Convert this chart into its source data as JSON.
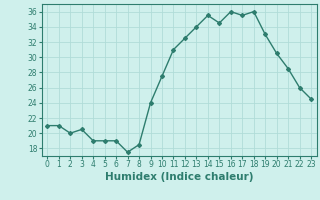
{
  "x": [
    0,
    1,
    2,
    3,
    4,
    5,
    6,
    7,
    8,
    9,
    10,
    11,
    12,
    13,
    14,
    15,
    16,
    17,
    18,
    19,
    20,
    21,
    22,
    23
  ],
  "y": [
    21,
    21,
    20,
    20.5,
    19,
    19,
    19,
    17.5,
    18.5,
    24,
    27.5,
    31,
    32.5,
    34,
    35.5,
    34.5,
    36,
    35.5,
    36,
    33,
    30.5,
    28.5,
    26,
    24.5
  ],
  "line_color": "#2e7d6e",
  "marker": "D",
  "marker_size": 2.0,
  "bg_color": "#cff0ec",
  "grid_color": "#b0dcd8",
  "xlabel": "Humidex (Indice chaleur)",
  "xlim": [
    -0.5,
    23.5
  ],
  "ylim": [
    17,
    37
  ],
  "yticks": [
    18,
    20,
    22,
    24,
    26,
    28,
    30,
    32,
    34,
    36
  ],
  "xticks": [
    0,
    1,
    2,
    3,
    4,
    5,
    6,
    7,
    8,
    9,
    10,
    11,
    12,
    13,
    14,
    15,
    16,
    17,
    18,
    19,
    20,
    21,
    22,
    23
  ],
  "tick_label_fontsize": 5.5,
  "xlabel_fontsize": 7.5,
  "line_width": 1.0
}
